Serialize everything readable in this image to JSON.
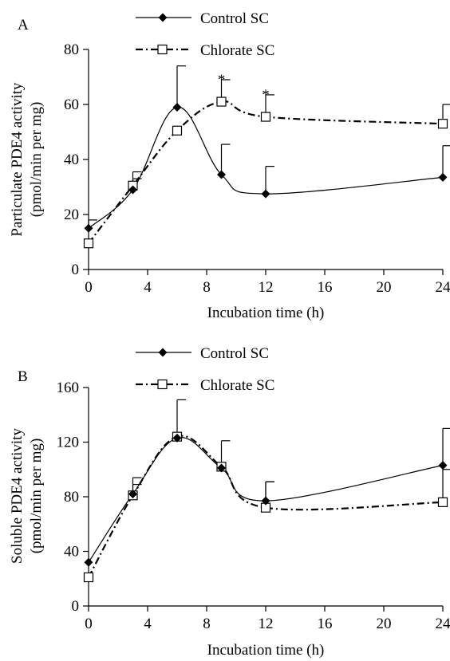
{
  "chart_data": [
    {
      "type": "line",
      "panel_label": "A",
      "ylabel_line1": "Particulate PDE4 activity",
      "ylabel_line2": "(pmol/min per mg)",
      "xlabel": "Incubation time (h)",
      "xlim": [
        0,
        24
      ],
      "ylim": [
        0,
        80
      ],
      "xticks": [
        0,
        4,
        8,
        12,
        16,
        20,
        24
      ],
      "yticks": [
        0,
        20,
        40,
        60,
        80
      ],
      "legend_position": "top",
      "x": [
        0,
        3,
        6,
        9,
        12,
        24
      ],
      "series": [
        {
          "name": "Control SC",
          "marker": "filled-diamond",
          "line": "solid",
          "values": [
            15,
            29,
            59,
            34.5,
            27.5,
            33.5
          ],
          "error": [
            3,
            4,
            15,
            11,
            10,
            11.5
          ]
        },
        {
          "name": "Chlorate SC",
          "marker": "open-square",
          "line": "dash-dot",
          "values": [
            9.5,
            30.5,
            50.5,
            61,
            55.5,
            53
          ],
          "error": [
            0,
            5,
            0,
            8,
            8,
            7
          ]
        }
      ],
      "annotations": [
        {
          "x": 9,
          "y": 69,
          "text": "*"
        },
        {
          "x": 12,
          "y": 63.5,
          "text": "*"
        }
      ]
    },
    {
      "type": "line",
      "panel_label": "B",
      "ylabel_line1": "Soluble PDE4 activity",
      "ylabel_line2": "(pmol/min per mg)",
      "xlabel": "Incubation time (h)",
      "xlim": [
        0,
        24
      ],
      "ylim": [
        0,
        160
      ],
      "xticks": [
        0,
        4,
        8,
        12,
        16,
        20,
        24
      ],
      "yticks": [
        0,
        40,
        80,
        120,
        160
      ],
      "legend_position": "top",
      "x": [
        0,
        3,
        6,
        9,
        12,
        24
      ],
      "series": [
        {
          "name": "Control SC",
          "marker": "filled-diamond",
          "line": "solid",
          "values": [
            32,
            82,
            123,
            101,
            77,
            103
          ],
          "error": [
            0,
            12,
            28,
            20,
            14,
            27
          ]
        },
        {
          "name": "Chlorate SC",
          "marker": "open-square",
          "line": "dash-dot",
          "values": [
            21,
            81,
            124,
            102,
            72,
            76
          ],
          "error": [
            0,
            8,
            0,
            0,
            19,
            24
          ]
        }
      ],
      "annotations": []
    }
  ]
}
